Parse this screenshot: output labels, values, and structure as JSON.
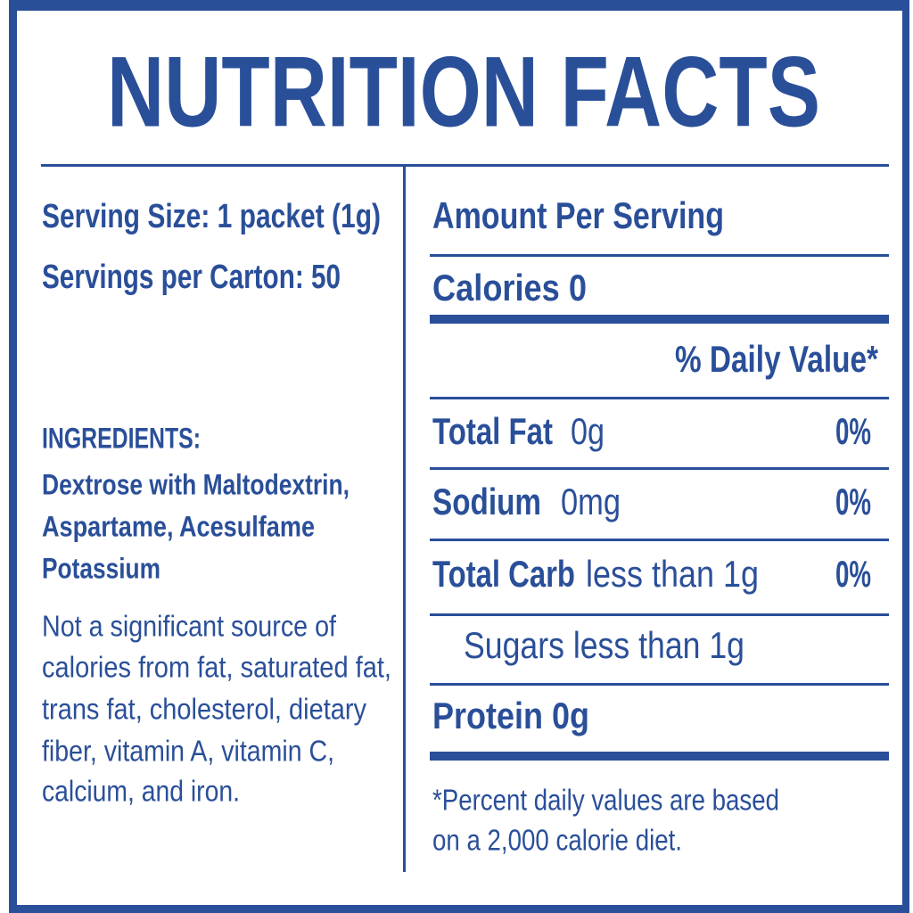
{
  "title": "NUTRITION FACTS",
  "serving": {
    "size": "Serving Size: 1 packet (1g)",
    "servings": "Servings per Carton: 50"
  },
  "ingredients": {
    "heading": "INGREDIENTS:",
    "lines": [
      "Dextrose with Maltodextrin,",
      "Aspartame, Acesulfame",
      "Potassium"
    ]
  },
  "note": {
    "lines": [
      "Not a significant source of",
      "calories from fat, saturated fat,",
      "trans fat, cholesterol, dietary",
      "fiber, vitamin A, vitamin C,",
      "calcium, and iron."
    ]
  },
  "facts": {
    "amount_header": "Amount Per Serving",
    "calories": "Calories 0",
    "daily_value_header": "% Daily Value*",
    "rows": [
      {
        "name": "Total Fat",
        "amount": "0g",
        "dv": "0%"
      },
      {
        "name": "Sodium",
        "amount": "0mg",
        "dv": "0%"
      },
      {
        "name": "Total Carb",
        "amount": "less than 1g",
        "dv": "0%"
      }
    ],
    "sugars": "Sugars less than 1g",
    "protein": "Protein 0g",
    "footnote": [
      "*Percent daily values are based",
      "on a 2,000 calorie diet."
    ]
  }
}
